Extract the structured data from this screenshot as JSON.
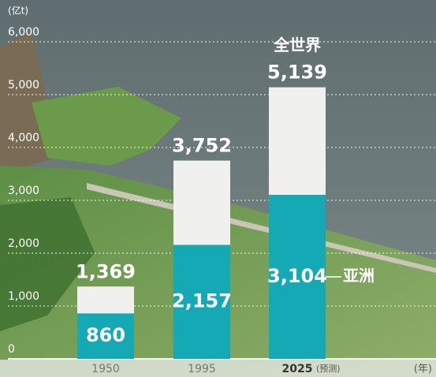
{
  "chart_data": {
    "type": "bar",
    "y_label": "(亿t)",
    "x_label": "(年)",
    "categories": [
      "1950",
      "1995",
      "2025"
    ],
    "annotations": [
      "(预测)"
    ],
    "series": [
      {
        "name": "亚洲",
        "color": "#14a9b4",
        "values": [
          860,
          2157,
          3104
        ],
        "value_labels": [
          "860",
          "2,157",
          "3,104"
        ]
      },
      {
        "name": "全世界",
        "color": "#f0f1ee",
        "values": [
          1369,
          3752,
          5139
        ],
        "value_labels": [
          "1,369",
          "3,752",
          "5,139"
        ]
      }
    ],
    "ylim": [
      0,
      6000
    ],
    "yticks": [
      0,
      {
        "value": 1000,
        "label": "1,000"
      },
      {
        "value": 2000,
        "label": "2,000"
      },
      {
        "value": 3000,
        "label": "3,000"
      },
      {
        "value": 4000,
        "label": "4,000"
      },
      {
        "value": 5000,
        "label": "5,000"
      },
      {
        "value": 6000,
        "label": "6,000"
      }
    ],
    "grid": true
  }
}
